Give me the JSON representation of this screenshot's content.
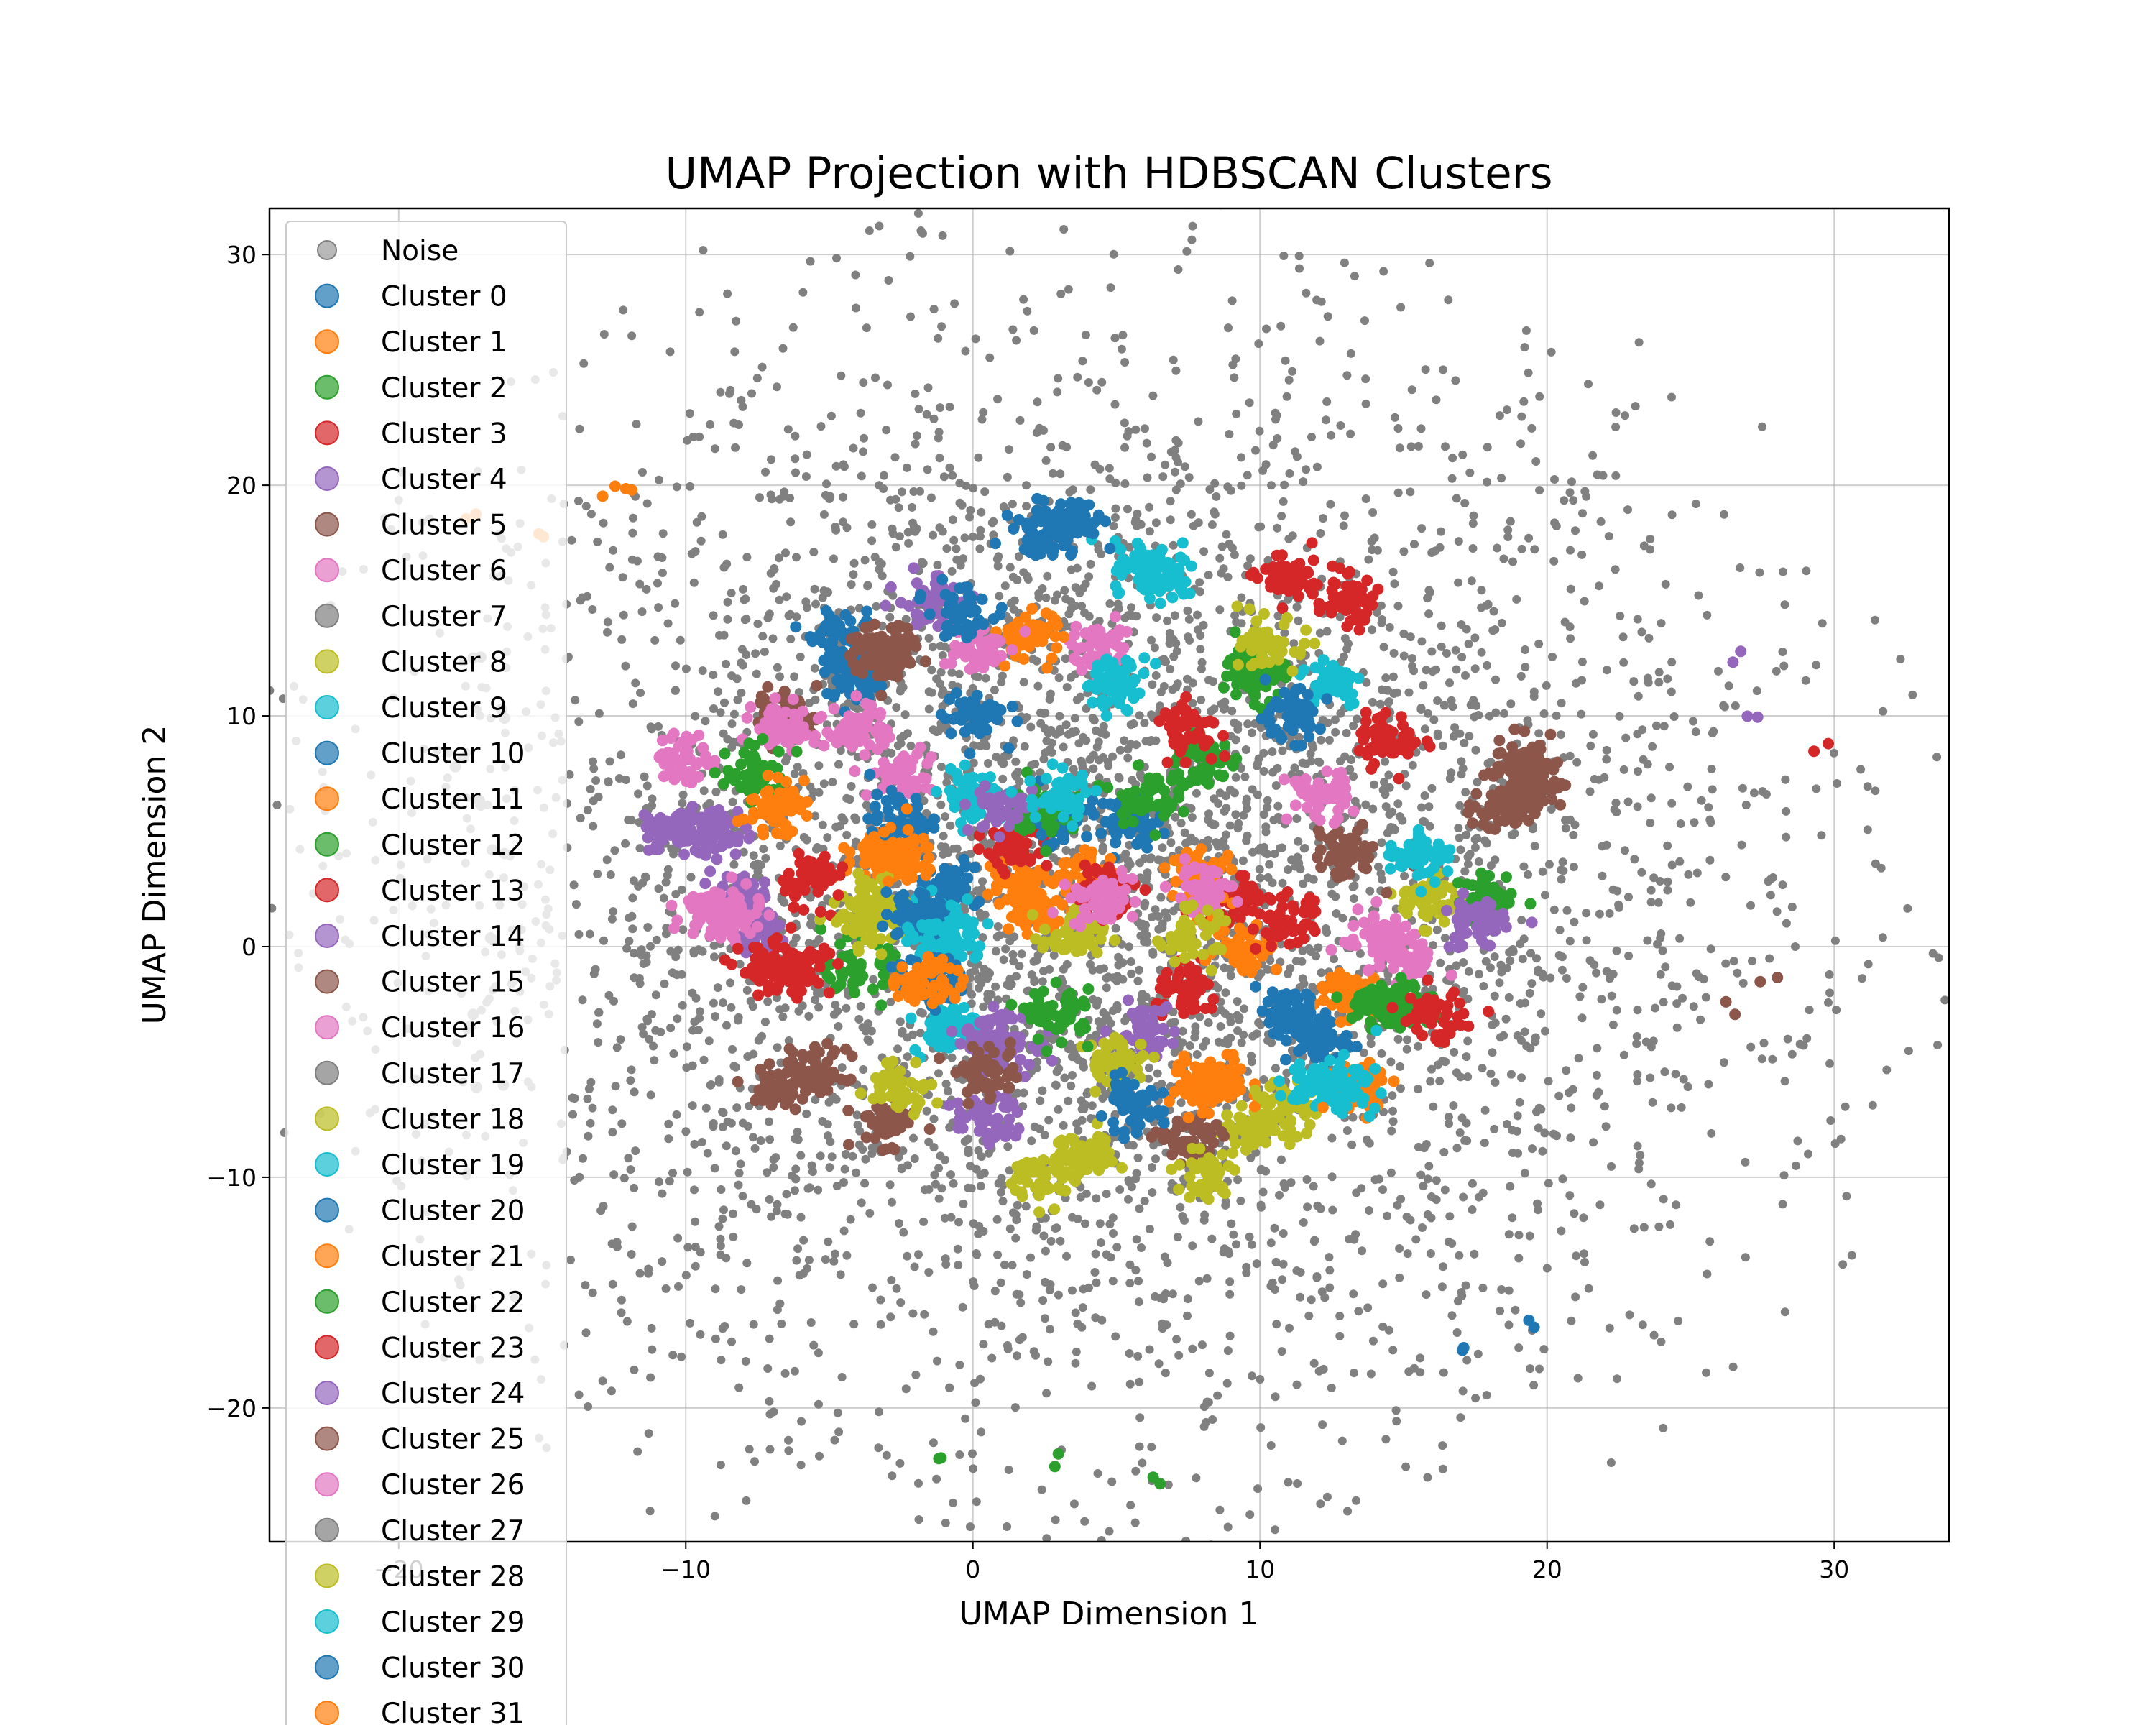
{
  "chart_data": {
    "type": "scatter",
    "title": "UMAP Projection with HDBSCAN Clusters",
    "xlabel": "UMAP Dimension 1",
    "ylabel": "UMAP Dimension 2",
    "xlim": [
      -24.5,
      34
    ],
    "ylim": [
      -25.8,
      32
    ],
    "xticks": [
      -20,
      -10,
      0,
      10,
      20,
      30
    ],
    "yticks": [
      -20,
      -10,
      0,
      10,
      20,
      30
    ],
    "grid": true,
    "legend_position": "upper-left",
    "noise": {
      "name": "Noise",
      "color": "#808080",
      "spread": 11.5,
      "radius_max": 31,
      "count": 5000
    },
    "series": [
      {
        "name": "Cluster 0",
        "color": "#1f77b4",
        "centers": [
          [
            -4.5,
            13.2
          ],
          [
            -4,
            11.5
          ],
          [
            17,
            -17.5
          ],
          [
            19.5,
            -16.5
          ],
          [
            2.5,
            18
          ],
          [
            -1,
            2.5
          ]
        ]
      },
      {
        "name": "Cluster 1",
        "color": "#ff7f0e",
        "centers": [
          [
            -17.5,
            19
          ],
          [
            -15,
            17.5
          ],
          [
            -12.5,
            19.8
          ],
          [
            -3,
            4
          ],
          [
            1.5,
            3
          ],
          [
            2,
            1.5
          ]
        ]
      },
      {
        "name": "Cluster 2",
        "color": "#2ca02c",
        "centers": [
          [
            8,
            8
          ],
          [
            10,
            12
          ],
          [
            -4,
            -1
          ],
          [
            -1,
            -22
          ],
          [
            3,
            -22.5
          ],
          [
            6,
            -23
          ]
        ]
      },
      {
        "name": "Cluster 3",
        "color": "#d62728",
        "centers": [
          [
            1.5,
            4.5
          ],
          [
            11,
            16
          ],
          [
            13,
            15
          ],
          [
            29.5,
            8.5
          ],
          [
            -6,
            -1
          ],
          [
            7.5,
            9.5
          ]
        ]
      },
      {
        "name": "Cluster 4",
        "color": "#9467bd",
        "centers": [
          [
            26.5,
            12.5
          ],
          [
            27,
            10
          ],
          [
            -1.5,
            15
          ],
          [
            -8,
            2
          ],
          [
            0.5,
            -7.5
          ]
        ]
      },
      {
        "name": "Cluster 5",
        "color": "#8c564b",
        "centers": [
          [
            19,
            8
          ],
          [
            18.5,
            6
          ],
          [
            28,
            -1.5
          ],
          [
            26.5,
            -2.5
          ],
          [
            -6.5,
            10
          ],
          [
            -3,
            13
          ]
        ]
      },
      {
        "name": "Cluster 6",
        "color": "#e377c2",
        "centers": [
          [
            -4,
            9.5
          ],
          [
            -10,
            8
          ],
          [
            -2.5,
            7.5
          ],
          [
            4.5,
            13
          ],
          [
            15,
            -0.5
          ]
        ]
      },
      {
        "name": "Cluster 7",
        "color": "#7f7f7f",
        "centers": [
          [
            -17.5,
            12
          ],
          [
            -16.5,
            10
          ],
          [
            -18,
            8
          ]
        ]
      },
      {
        "name": "Cluster 8",
        "color": "#bcbd22",
        "centers": [
          [
            4,
            -9
          ],
          [
            9.5,
            -8
          ],
          [
            3.5,
            0.5
          ],
          [
            -3.5,
            2
          ],
          [
            16,
            2
          ]
        ]
      },
      {
        "name": "Cluster 9",
        "color": "#17becf",
        "centers": [
          [
            12.5,
            11.5
          ],
          [
            6,
            16.5
          ],
          [
            -1.5,
            1.5
          ],
          [
            0,
            6.5
          ],
          [
            -1,
            -3.5
          ]
        ]
      },
      {
        "name": "Cluster 10",
        "color": "#1f77b4",
        "centers": [
          [
            5.5,
            5.5
          ],
          [
            12,
            -4
          ],
          [
            -2.5,
            5.5
          ],
          [
            0,
            10
          ]
        ]
      },
      {
        "name": "Cluster 11",
        "color": "#ff7f0e",
        "centers": [
          [
            13,
            -2
          ],
          [
            -2.5,
            4
          ],
          [
            8.5,
            -6
          ],
          [
            4,
            3
          ]
        ]
      },
      {
        "name": "Cluster 12",
        "color": "#2ca02c",
        "centers": [
          [
            10,
            12
          ],
          [
            18,
            2
          ],
          [
            6,
            6.5
          ],
          [
            14,
            -2.5
          ]
        ]
      },
      {
        "name": "Cluster 13",
        "color": "#d62728",
        "centers": [
          [
            14.5,
            9
          ],
          [
            9,
            2
          ],
          [
            -5.5,
            3
          ],
          [
            7.5,
            -2
          ]
        ]
      },
      {
        "name": "Cluster 14",
        "color": "#9467bd",
        "centers": [
          [
            -7.5,
            0.5
          ],
          [
            -10.5,
            5
          ],
          [
            6,
            -3.5
          ],
          [
            1,
            -4
          ]
        ]
      },
      {
        "name": "Cluster 15",
        "color": "#8c564b",
        "centers": [
          [
            -5.5,
            -5.5
          ],
          [
            -3,
            -7.5
          ],
          [
            7.5,
            -8.5
          ],
          [
            13,
            4
          ]
        ]
      },
      {
        "name": "Cluster 16",
        "color": "#e377c2",
        "centers": [
          [
            -6.5,
            9.5
          ],
          [
            14,
            0.5
          ],
          [
            -8.5,
            1.5
          ],
          [
            12,
            6.5
          ]
        ]
      },
      {
        "name": "Cluster 17",
        "color": "#7f7f7f",
        "centers": [
          [
            -17,
            6
          ],
          [
            -16.5,
            0.5
          ],
          [
            -17.5,
            -3
          ]
        ]
      },
      {
        "name": "Cluster 18",
        "color": "#bcbd22",
        "centers": [
          [
            -3.5,
            1
          ],
          [
            11,
            -7
          ],
          [
            -2.5,
            -6
          ],
          [
            5,
            -5
          ]
        ]
      },
      {
        "name": "Cluster 19",
        "color": "#17becf",
        "centers": [
          [
            5,
            11.5
          ],
          [
            -1,
            0.5
          ],
          [
            15.5,
            4
          ],
          [
            12,
            -6
          ]
        ]
      },
      {
        "name": "Cluster 20",
        "color": "#1f77b4",
        "centers": [
          [
            -2,
            1.5
          ],
          [
            3,
            5.5
          ],
          [
            11,
            10
          ],
          [
            5.5,
            -7
          ]
        ]
      },
      {
        "name": "Cluster 21",
        "color": "#ff7f0e",
        "centers": [
          [
            2,
            13.5
          ],
          [
            8,
            3
          ],
          [
            13.5,
            -6
          ],
          [
            9.5,
            0
          ]
        ]
      },
      {
        "name": "Cluster 22",
        "color": "#2ca02c",
        "centers": [
          [
            2.5,
            6
          ],
          [
            -7.5,
            7.5
          ],
          [
            15,
            -2.5
          ],
          [
            3,
            -3
          ]
        ]
      },
      {
        "name": "Cluster 23",
        "color": "#d62728",
        "centers": [
          [
            4.5,
            2.5
          ],
          [
            11,
            1
          ],
          [
            16,
            -3
          ],
          [
            -7,
            -1
          ]
        ]
      },
      {
        "name": "Cluster 24",
        "color": "#9467bd",
        "centers": [
          [
            1,
            6
          ],
          [
            17.5,
            1
          ],
          [
            0.5,
            -4.5
          ],
          [
            -9,
            5
          ]
        ]
      },
      {
        "name": "Cluster 25",
        "color": "#8c564b",
        "centers": [
          [
            -6.5,
            -6
          ],
          [
            0.5,
            -5.5
          ],
          [
            -3,
            12.5
          ],
          [
            19.5,
            7
          ]
        ]
      },
      {
        "name": "Cluster 26",
        "color": "#e377c2",
        "centers": [
          [
            4.5,
            2
          ],
          [
            8,
            2.5
          ],
          [
            -9,
            1.5
          ],
          [
            0,
            13
          ]
        ]
      },
      {
        "name": "Cluster 27",
        "color": "#7f7f7f",
        "centers": [
          [
            -16.5,
            4
          ],
          [
            -17,
            -6
          ]
        ]
      },
      {
        "name": "Cluster 28",
        "color": "#bcbd22",
        "centers": [
          [
            8,
            -10
          ],
          [
            2.5,
            -10
          ],
          [
            10.5,
            13
          ],
          [
            7.5,
            0.5
          ]
        ]
      },
      {
        "name": "Cluster 29",
        "color": "#17becf",
        "centers": [
          [
            -1,
            0.5
          ],
          [
            6.5,
            16
          ],
          [
            3,
            6.5
          ],
          [
            13,
            -6
          ]
        ]
      },
      {
        "name": "Cluster 30",
        "color": "#1f77b4",
        "centers": [
          [
            3.5,
            18.5
          ],
          [
            -0.5,
            14.5
          ],
          [
            11,
            -3
          ],
          [
            -1.5,
            -1.5
          ]
        ]
      },
      {
        "name": "Cluster 31",
        "color": "#ff7f0e",
        "centers": [
          [
            -12.5,
            19.8
          ],
          [
            -7,
            6
          ],
          [
            -1.5,
            -1.5
          ],
          [
            8,
            -6
          ]
        ]
      }
    ]
  }
}
